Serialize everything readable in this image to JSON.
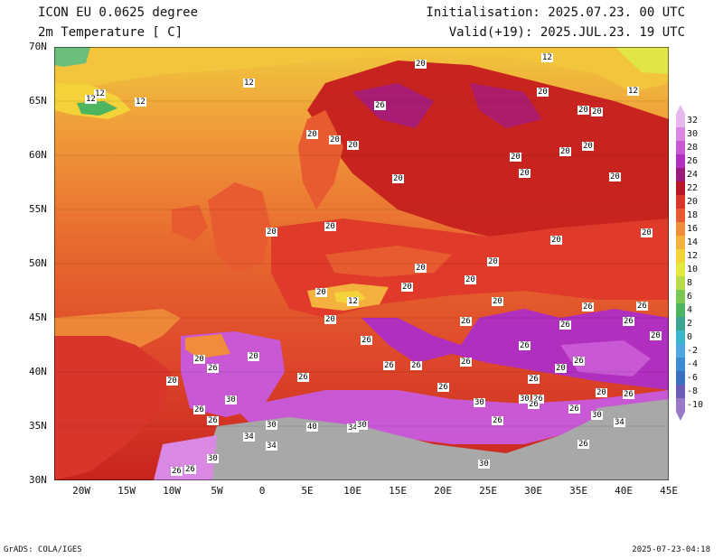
{
  "header": {
    "title_line1": "ICON EU 0.0625 degree",
    "title_line2": "2m Temperature [ C]",
    "init": "Initialisation: 2025.07.23. 00 UTC",
    "valid": "Valid(+19): 2025.JUL.23. 19 UTC"
  },
  "axes": {
    "lat_labels": [
      "70N",
      "65N",
      "60N",
      "55N",
      "50N",
      "45N",
      "40N",
      "35N",
      "30N"
    ],
    "lon_labels": [
      "20W",
      "15W",
      "10W",
      "5W",
      "0",
      "5E",
      "10E",
      "15E",
      "20E",
      "25E",
      "30E",
      "35E",
      "40E",
      "45E"
    ]
  },
  "legend": {
    "labels": [
      "32",
      "30",
      "28",
      "26",
      "24",
      "22",
      "20",
      "18",
      "16",
      "14",
      "12",
      "10",
      "8",
      "6",
      "4",
      "2",
      "0",
      "-2",
      "-4",
      "-6",
      "-8",
      "-10"
    ],
    "colors": [
      "#e8b7ee",
      "#d989e4",
      "#c858d4",
      "#b02fbf",
      "#9c1a7a",
      "#b71622",
      "#d8362a",
      "#e85a2f",
      "#f08c3a",
      "#f5b13e",
      "#f4d23a",
      "#e4e841",
      "#b7dc48",
      "#7cc752",
      "#4db460",
      "#3aa592",
      "#3ab6cc",
      "#4fa8e2",
      "#3d8bd0",
      "#3b6fc0",
      "#6a5cb8",
      "#9a78c8"
    ]
  },
  "contour_labels": [
    {
      "text": "12",
      "lon": -1.5,
      "lat": 66.7
    },
    {
      "text": "20",
      "lon": 17.5,
      "lat": 68.4
    },
    {
      "text": "12",
      "lon": 31.5,
      "lat": 69.0
    },
    {
      "text": "12",
      "lon": -18.0,
      "lat": 65.7
    },
    {
      "text": "12",
      "lon": -19.0,
      "lat": 65.2
    },
    {
      "text": "12",
      "lon": -13.5,
      "lat": 64.9
    },
    {
      "text": "12",
      "lon": 41.0,
      "lat": 65.9
    },
    {
      "text": "20",
      "lon": 31.0,
      "lat": 65.8
    },
    {
      "text": "26",
      "lon": 13.0,
      "lat": 64.6
    },
    {
      "text": "20",
      "lon": 35.5,
      "lat": 64.2
    },
    {
      "text": "20",
      "lon": 37.0,
      "lat": 64.0
    },
    {
      "text": "20",
      "lon": 5.5,
      "lat": 61.9
    },
    {
      "text": "20",
      "lon": 8.0,
      "lat": 61.4
    },
    {
      "text": "20",
      "lon": 10.0,
      "lat": 60.9
    },
    {
      "text": "20",
      "lon": 33.5,
      "lat": 60.3
    },
    {
      "text": "20",
      "lon": 36.0,
      "lat": 60.8
    },
    {
      "text": "20",
      "lon": 28.0,
      "lat": 59.8
    },
    {
      "text": "20",
      "lon": 15.0,
      "lat": 57.8
    },
    {
      "text": "20",
      "lon": 29.0,
      "lat": 58.3
    },
    {
      "text": "20",
      "lon": 39.0,
      "lat": 58.0
    },
    {
      "text": "20",
      "lon": 1.0,
      "lat": 52.9
    },
    {
      "text": "20",
      "lon": 7.5,
      "lat": 53.4
    },
    {
      "text": "20",
      "lon": 32.5,
      "lat": 52.2
    },
    {
      "text": "20",
      "lon": 42.5,
      "lat": 52.8
    },
    {
      "text": "20",
      "lon": 17.5,
      "lat": 49.6
    },
    {
      "text": "20",
      "lon": 25.5,
      "lat": 50.2
    },
    {
      "text": "20",
      "lon": 23.0,
      "lat": 48.5
    },
    {
      "text": "20",
      "lon": 16.0,
      "lat": 47.8
    },
    {
      "text": "20",
      "lon": 6.5,
      "lat": 47.3
    },
    {
      "text": "12",
      "lon": 10.0,
      "lat": 46.5
    },
    {
      "text": "20",
      "lon": 26.0,
      "lat": 46.5
    },
    {
      "text": "26",
      "lon": 36.0,
      "lat": 46.0
    },
    {
      "text": "26",
      "lon": 42.0,
      "lat": 46.1
    },
    {
      "text": "20",
      "lon": 7.5,
      "lat": 44.8
    },
    {
      "text": "26",
      "lon": 22.5,
      "lat": 44.7
    },
    {
      "text": "26",
      "lon": 33.5,
      "lat": 44.3
    },
    {
      "text": "26",
      "lon": 40.5,
      "lat": 44.7
    },
    {
      "text": "20",
      "lon": 43.5,
      "lat": 43.3
    },
    {
      "text": "26",
      "lon": 11.5,
      "lat": 42.9
    },
    {
      "text": "26",
      "lon": 29.0,
      "lat": 42.4
    },
    {
      "text": "20",
      "lon": -7.0,
      "lat": 41.2
    },
    {
      "text": "20",
      "lon": -1.0,
      "lat": 41.4
    },
    {
      "text": "26",
      "lon": -5.5,
      "lat": 40.3
    },
    {
      "text": "26",
      "lon": 14.0,
      "lat": 40.6
    },
    {
      "text": "26",
      "lon": 17.0,
      "lat": 40.6
    },
    {
      "text": "26",
      "lon": 22.5,
      "lat": 40.9
    },
    {
      "text": "26",
      "lon": 35.0,
      "lat": 41.0
    },
    {
      "text": "20",
      "lon": 33.0,
      "lat": 40.3
    },
    {
      "text": "20",
      "lon": -10.0,
      "lat": 39.2
    },
    {
      "text": "26",
      "lon": 4.5,
      "lat": 39.5
    },
    {
      "text": "26",
      "lon": 30.0,
      "lat": 39.3
    },
    {
      "text": "26",
      "lon": 20.0,
      "lat": 38.6
    },
    {
      "text": "20",
      "lon": 37.5,
      "lat": 38.1
    },
    {
      "text": "26",
      "lon": 40.5,
      "lat": 37.9
    },
    {
      "text": "30",
      "lon": -3.5,
      "lat": 37.4
    },
    {
      "text": "26",
      "lon": -7.0,
      "lat": 36.5
    },
    {
      "text": "30",
      "lon": 24.0,
      "lat": 37.2
    },
    {
      "text": "30",
      "lon": 29.0,
      "lat": 37.5
    },
    {
      "text": "26",
      "lon": 30.5,
      "lat": 37.5
    },
    {
      "text": "26",
      "lon": 30.0,
      "lat": 37.0
    },
    {
      "text": "26",
      "lon": 34.5,
      "lat": 36.6
    },
    {
      "text": "30",
      "lon": 37.0,
      "lat": 36.0
    },
    {
      "text": "26",
      "lon": -5.5,
      "lat": 35.5
    },
    {
      "text": "26",
      "lon": 26.0,
      "lat": 35.5
    },
    {
      "text": "30",
      "lon": 1.0,
      "lat": 35.1
    },
    {
      "text": "40",
      "lon": 5.5,
      "lat": 34.9
    },
    {
      "text": "34",
      "lon": 10.0,
      "lat": 34.8
    },
    {
      "text": "30",
      "lon": 11.0,
      "lat": 35.1
    },
    {
      "text": "34",
      "lon": 39.5,
      "lat": 35.3
    },
    {
      "text": "34",
      "lon": -1.5,
      "lat": 34.0
    },
    {
      "text": "34",
      "lon": 1.0,
      "lat": 33.2
    },
    {
      "text": "26",
      "lon": 35.5,
      "lat": 33.3
    },
    {
      "text": "30",
      "lon": -5.5,
      "lat": 32.0
    },
    {
      "text": "30",
      "lon": 24.5,
      "lat": 31.5
    },
    {
      "text": "26",
      "lon": -9.5,
      "lat": 30.8
    },
    {
      "text": "26",
      "lon": -8.0,
      "lat": 31.0
    }
  ],
  "footer": {
    "credit": "GrADS: COLA/IGES",
    "timestamp": "2025-07-23-04:18"
  }
}
